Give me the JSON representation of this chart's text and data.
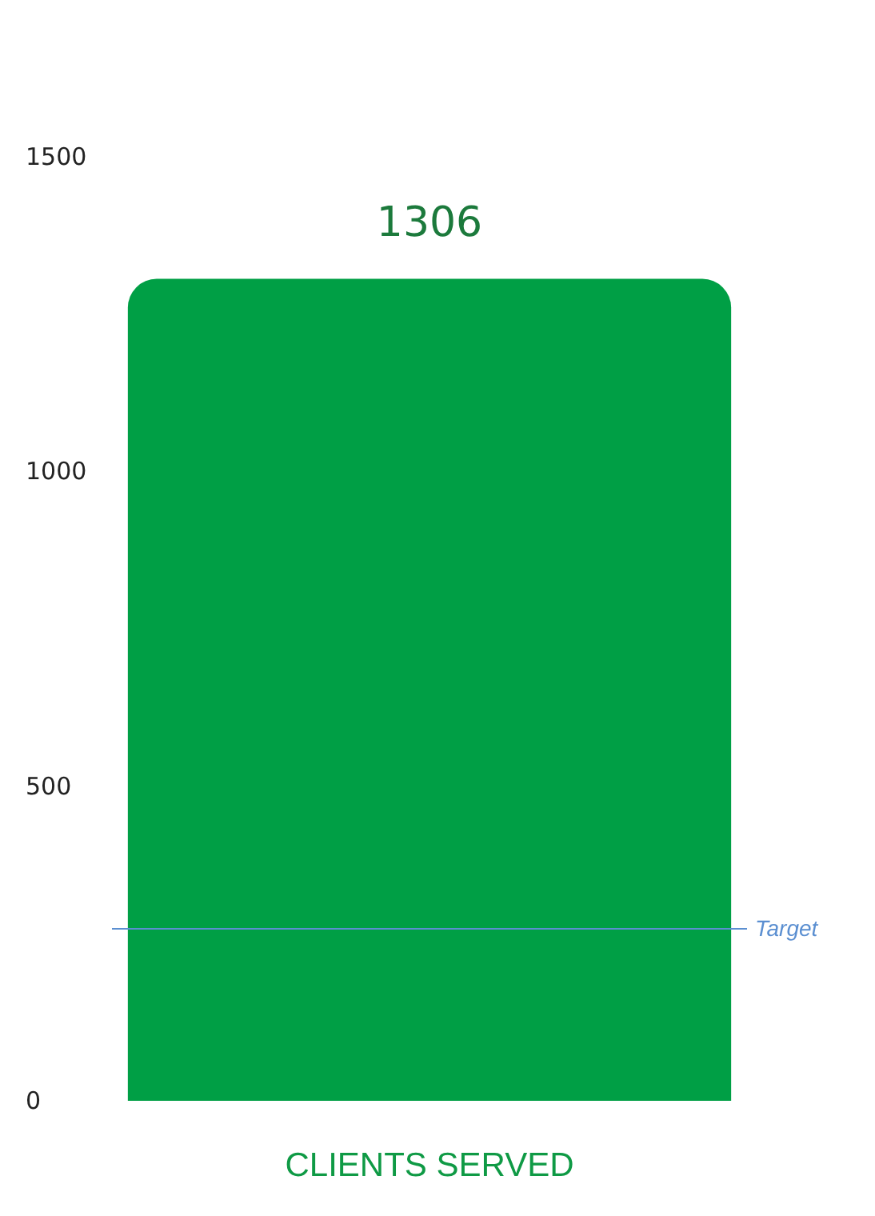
{
  "chart_data": {
    "type": "bar",
    "categories": [
      "CLIENTS SERVED"
    ],
    "values": [
      1306
    ],
    "color": "#009f45",
    "ylim": [
      0,
      1500
    ],
    "yticks": [
      0,
      500,
      1000,
      1500
    ],
    "grid": false,
    "data_labels": true,
    "ref_lines": [
      {
        "axis": "y",
        "value": 275,
        "label": "Target",
        "color": "#5b8fd1"
      }
    ]
  }
}
